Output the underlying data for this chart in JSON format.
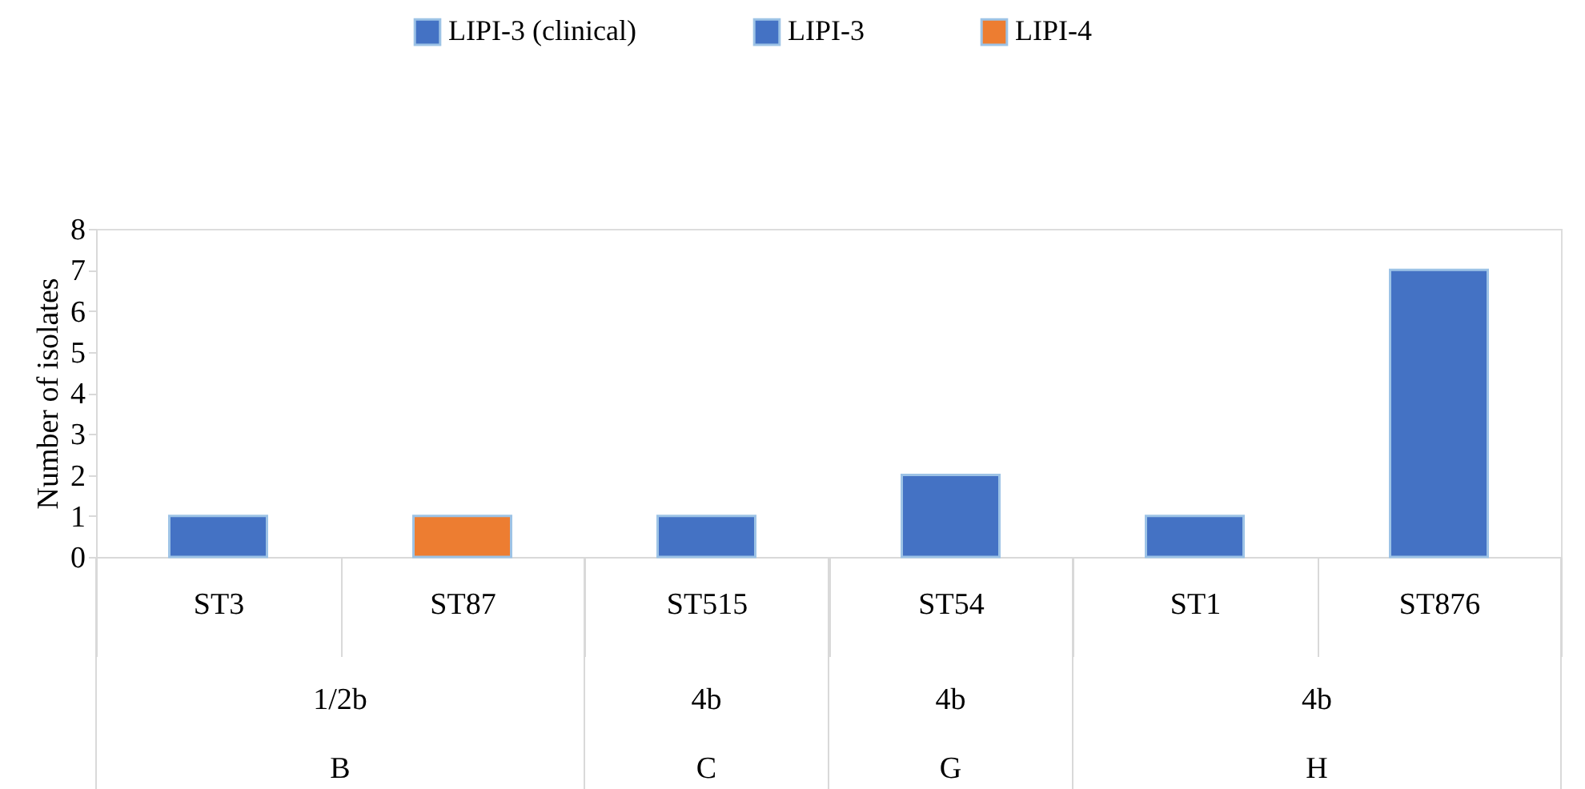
{
  "chart_data": {
    "type": "bar",
    "categories": [
      "ST3",
      "ST87",
      "ST515",
      "ST54",
      "ST1",
      "ST876"
    ],
    "series": [
      {
        "name": "LIPI-3 (clinical)",
        "color": "#4472c4",
        "values": [
          null,
          null,
          null,
          null,
          1,
          7
        ]
      },
      {
        "name": "LIPI-3",
        "color": "#4472c4",
        "values": [
          1,
          null,
          1,
          2,
          null,
          null
        ]
      },
      {
        "name": "LIPI-4",
        "color": "#ed7d31",
        "values": [
          null,
          1,
          null,
          null,
          null,
          null
        ]
      }
    ],
    "ylabel": "Number of isolates",
    "ylim": [
      0,
      8
    ],
    "yticks": [
      0,
      1,
      2,
      3,
      4,
      5,
      6,
      7,
      8
    ],
    "grid": false,
    "legend": "top",
    "annotations": [
      "1/2b",
      "4b",
      "4b",
      "4b",
      "B",
      "C",
      "G",
      "H"
    ]
  }
}
